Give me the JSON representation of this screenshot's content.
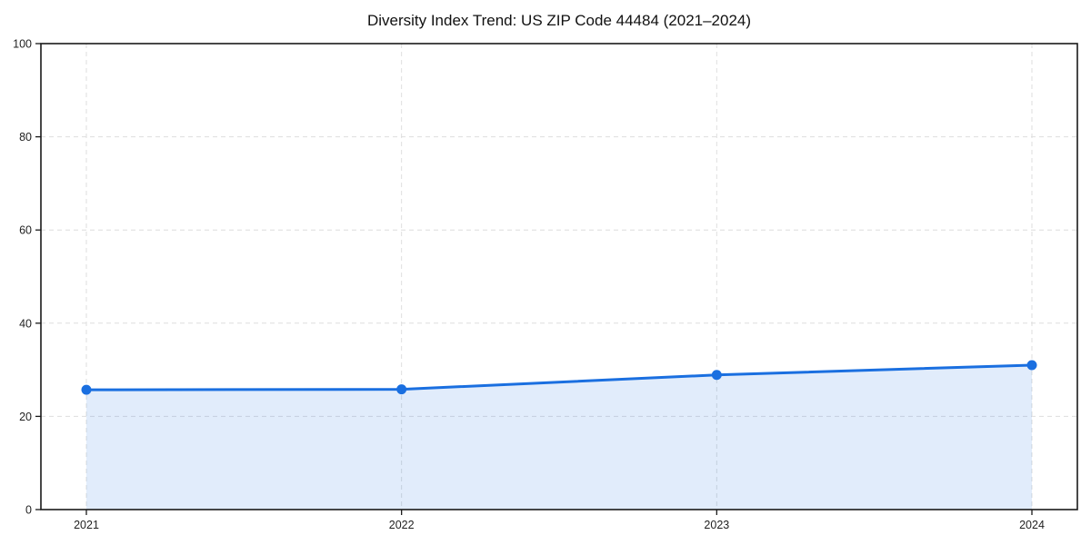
{
  "chart_data": {
    "type": "area",
    "title": "Diversity Index Trend: US ZIP Code 44484 (2021–2024)",
    "categories": [
      "2021",
      "2022",
      "2023",
      "2024"
    ],
    "values": [
      25.7,
      25.8,
      28.9,
      31.0
    ],
    "series_name": "Diversity Index",
    "xlabel": "",
    "ylabel": "",
    "ylim": [
      0,
      100
    ],
    "yticks": [
      0,
      20,
      40,
      60,
      80,
      100
    ],
    "grid": "dashed",
    "legend": "none",
    "line_color": "#1a6fe0",
    "fill_color": "#e8f0fb",
    "grid_color": "#dedede",
    "axis_color": "#1a1a1a"
  }
}
